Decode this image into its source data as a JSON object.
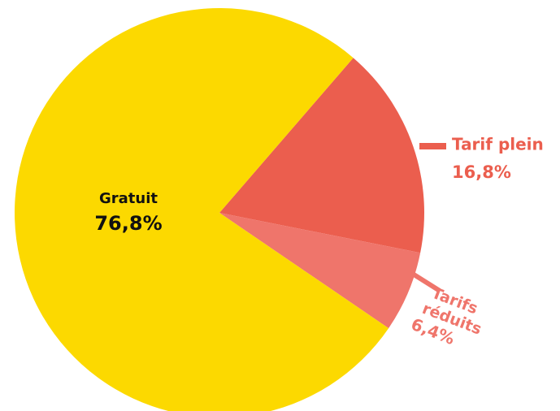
{
  "chart_data": {
    "type": "pie",
    "categories": [
      "Tarif plein",
      "Tarifs réduits",
      "Gratuit"
    ],
    "values": [
      16.8,
      6.4,
      76.8
    ],
    "value_labels": [
      "16,8%",
      "6,4%",
      "76,8%"
    ],
    "colors": [
      "#eb5e4e",
      "#ef756b",
      "#fcd900"
    ]
  }
}
